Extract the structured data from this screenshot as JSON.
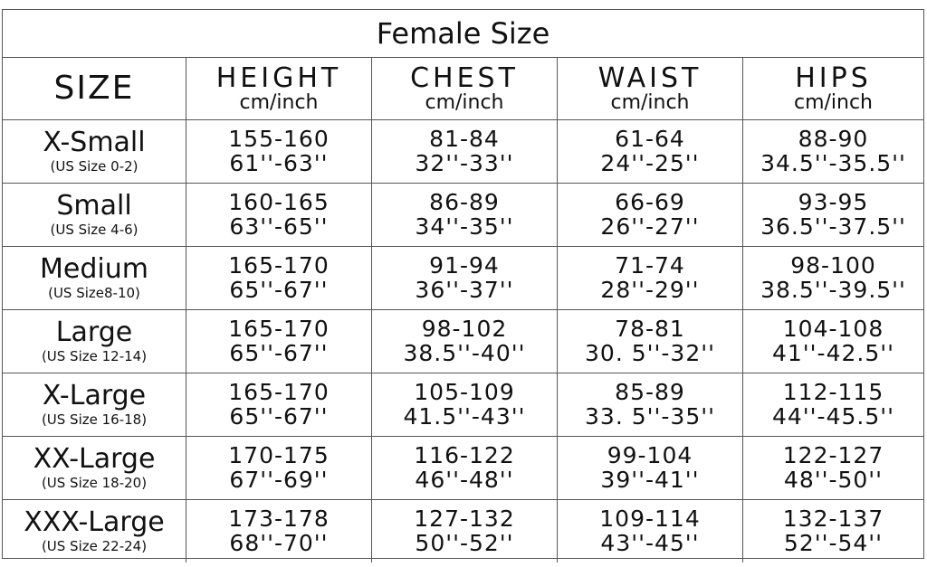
{
  "title": "Female Size",
  "headers": {
    "size": "SIZE",
    "columns": [
      {
        "name": "HEIGHT",
        "unit": "cm/inch"
      },
      {
        "name": "CHEST",
        "unit": "cm/inch"
      },
      {
        "name": "WAIST",
        "unit": "cm/inch"
      },
      {
        "name": "HIPS",
        "unit": "cm/inch"
      }
    ]
  },
  "rows": [
    {
      "size": "X-Small",
      "us": "(US Size 0-2)",
      "cells": [
        [
          "155-160",
          "61''-63''"
        ],
        [
          "81-84",
          "32''-33''"
        ],
        [
          "61-64",
          "24''-25''"
        ],
        [
          "88-90",
          "34.5''-35.5''"
        ]
      ]
    },
    {
      "size": "Small",
      "us": "(US Size 4-6)",
      "cells": [
        [
          "160-165",
          "63''-65''"
        ],
        [
          "86-89",
          "34''-35''"
        ],
        [
          "66-69",
          "26''-27''"
        ],
        [
          "93-95",
          "36.5''-37.5''"
        ]
      ]
    },
    {
      "size": "Medium",
      "us": "(US Size8-10)",
      "cells": [
        [
          "165-170",
          "65''-67''"
        ],
        [
          "91-94",
          "36''-37''"
        ],
        [
          "71-74",
          "28''-29''"
        ],
        [
          "98-100",
          "38.5''-39.5''"
        ]
      ]
    },
    {
      "size": "Large",
      "us": "(US Size 12-14)",
      "cells": [
        [
          "165-170",
          "65''-67''"
        ],
        [
          "98-102",
          "38.5''-40''"
        ],
        [
          "78-81",
          "30. 5''-32''"
        ],
        [
          "104-108",
          "41''-42.5''"
        ]
      ]
    },
    {
      "size": "X-Large",
      "us": "(US Size 16-18)",
      "cells": [
        [
          "165-170",
          "65''-67''"
        ],
        [
          "105-109",
          "41.5''-43''"
        ],
        [
          "85-89",
          "33. 5''-35''"
        ],
        [
          "112-115",
          "44''-45.5''"
        ]
      ]
    },
    {
      "size": "XX-Large",
      "us": "(US Size 18-20)",
      "cells": [
        [
          "170-175",
          "67''-69''"
        ],
        [
          "116-122",
          "46''-48''"
        ],
        [
          "99-104",
          "39''-41''"
        ],
        [
          "122-127",
          "48''-50''"
        ]
      ]
    },
    {
      "size": "XXX-Large",
      "us": "(US Size 22-24)",
      "cells": [
        [
          "173-178",
          "68''-70''"
        ],
        [
          "127-132",
          "50''-52''"
        ],
        [
          "109-114",
          "43''-45''"
        ],
        [
          "132-137",
          "52''-54''"
        ]
      ]
    }
  ]
}
